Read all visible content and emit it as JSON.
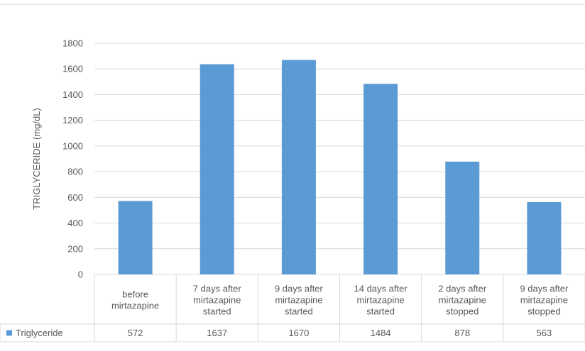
{
  "chart_data": {
    "type": "bar",
    "title": "",
    "xlabel": "",
    "ylabel": "TRIGLYCERIDE  (mg/dL)",
    "ylim": [
      0,
      1800
    ],
    "y_ticks": [
      0,
      200,
      400,
      600,
      800,
      1000,
      1200,
      1400,
      1600,
      1800
    ],
    "grid": true,
    "legend": "data-table-left",
    "categories": [
      [
        "before",
        "mirtazapine"
      ],
      [
        "7 days after",
        "mirtazapine",
        "started"
      ],
      [
        "9 days after",
        "mirtazapine",
        "started"
      ],
      [
        "14 days after",
        "mirtazapine",
        "started"
      ],
      [
        "2 days after",
        "mirtazapine",
        "stopped"
      ],
      [
        "9 days after",
        "mirtazapine",
        "stopped"
      ]
    ],
    "series": [
      {
        "name": "Triglyceride",
        "color": "#5b9bd5",
        "values": [
          572,
          1637,
          1670,
          1484,
          878,
          563
        ]
      }
    ]
  }
}
